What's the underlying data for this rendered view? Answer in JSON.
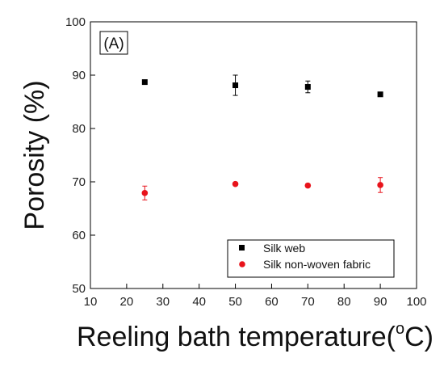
{
  "chart_data": {
    "type": "scatter",
    "panel_label": "(A)",
    "xlabel": "Reeling bath temperature(",
    "xlabel_sup": "o",
    "xlabel_end": "C)",
    "ylabel": "Porosity (%)",
    "xlim": [
      10,
      100
    ],
    "ylim": [
      50,
      100
    ],
    "xticks": [
      10,
      20,
      30,
      40,
      50,
      60,
      70,
      80,
      90,
      100
    ],
    "yticks": [
      50,
      60,
      70,
      80,
      90,
      100
    ],
    "grid": false,
    "legend_position": "bottom-right",
    "series": [
      {
        "name": "Silk web",
        "marker": "square",
        "color": "#000000",
        "x": [
          25,
          50,
          70,
          90
        ],
        "y": [
          88.7,
          88.1,
          87.8,
          86.4
        ],
        "error": [
          0.3,
          1.9,
          1.1,
          0.3
        ]
      },
      {
        "name": "Silk non-woven fabric",
        "marker": "circle",
        "color": "#e8131b",
        "x": [
          25,
          50,
          70,
          90
        ],
        "y": [
          67.9,
          69.6,
          69.3,
          69.4
        ],
        "error": [
          1.3,
          0.3,
          0.3,
          1.4
        ]
      }
    ]
  }
}
